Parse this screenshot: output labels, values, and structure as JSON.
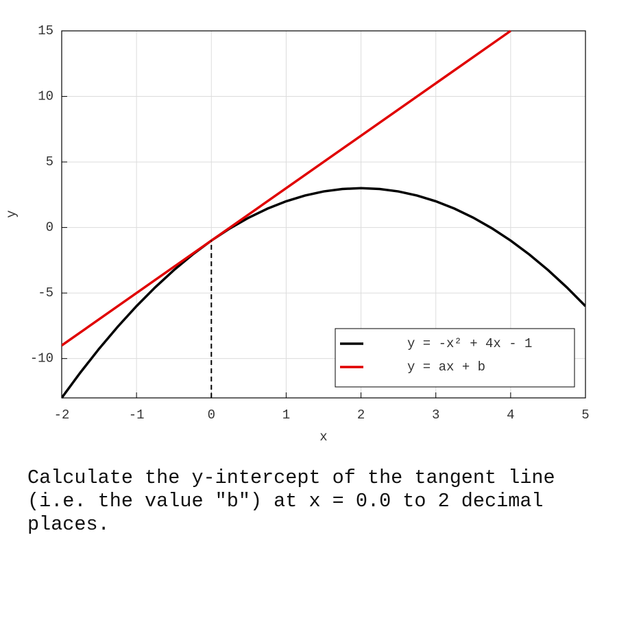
{
  "chart_data": {
    "type": "line",
    "x_label": "x",
    "y_label": "y",
    "xlim": [
      -2,
      5
    ],
    "ylim": [
      -13,
      15
    ],
    "xticks": [
      -2,
      -1,
      0,
      1,
      2,
      3,
      4,
      5
    ],
    "yticks": [
      -10,
      -5,
      0,
      5,
      10,
      15
    ],
    "grid": true,
    "legend": "lower right",
    "series": [
      {
        "name": "y = -x² + 4x - 1",
        "color": "#000000",
        "x": [
          -2,
          -1.75,
          -1.5,
          -1.25,
          -1,
          -0.75,
          -0.5,
          -0.25,
          0,
          0.25,
          0.5,
          0.75,
          1,
          1.25,
          1.5,
          1.75,
          2,
          2.25,
          2.5,
          2.75,
          3,
          3.25,
          3.5,
          3.75,
          4,
          4.25,
          4.5,
          4.75,
          5
        ],
        "values": [
          -13,
          -11.0625,
          -9.25,
          -7.5625,
          -6,
          -4.5625,
          -3.25,
          -2.0625,
          -1,
          -0.0625,
          0.75,
          1.4375,
          2,
          2.4375,
          2.75,
          2.9375,
          3,
          2.9375,
          2.75,
          2.4375,
          2,
          1.4375,
          0.75,
          -0.0625,
          -1,
          -2.0625,
          -3.25,
          -4.5625,
          -6
        ]
      },
      {
        "name": "y = ax + b",
        "color": "#e00000",
        "x": [
          -2,
          4
        ],
        "values": [
          -9,
          15
        ]
      },
      {
        "color": "#000000",
        "style": "dashed",
        "x": [
          0,
          0
        ],
        "values": [
          -13,
          -1
        ]
      }
    ]
  },
  "question": "Calculate the y-intercept of the tangent line (i.e. the value \"b\") at x = 0.0 to 2 decimal places."
}
